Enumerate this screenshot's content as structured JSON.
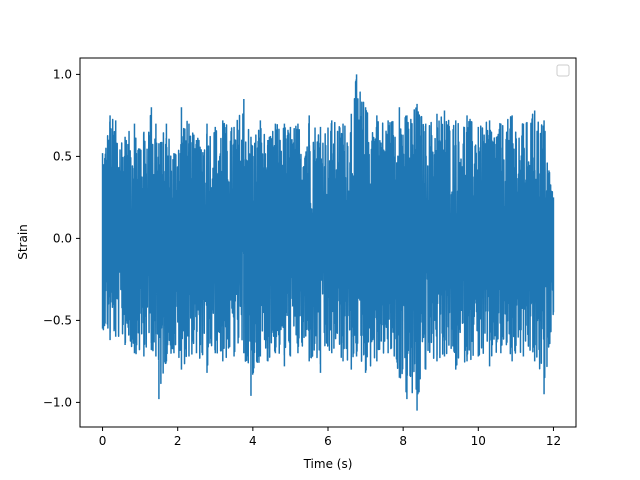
{
  "chart_data": {
    "type": "line",
    "title": "",
    "xlabel": "Time (s)",
    "ylabel": "Strain",
    "xlim": [
      -0.6,
      12.6
    ],
    "ylim": [
      -1.15,
      1.1
    ],
    "x_ticks": [
      0,
      2,
      4,
      6,
      8,
      10,
      12
    ],
    "x_tick_labels": [
      "0",
      "2",
      "4",
      "6",
      "8",
      "10",
      "12"
    ],
    "y_ticks": [
      -1.0,
      -0.5,
      0.0,
      0.5,
      1.0
    ],
    "y_tick_labels": [
      "−1.0",
      "−0.5",
      "0.0",
      "0.5",
      "1.0"
    ],
    "grid": false,
    "legend": {
      "placement": "top-right",
      "entries": []
    },
    "line_color": "#1f77b4",
    "series": [
      {
        "x": [
          0.0,
          0.2,
          0.35,
          0.6,
          0.85,
          1.1,
          1.3,
          1.42,
          1.5,
          1.7,
          1.9,
          2.1,
          2.3,
          2.5,
          2.78,
          3.0,
          3.2,
          3.5,
          3.76,
          3.95,
          4.2,
          4.4,
          4.6,
          4.84,
          5.0,
          5.2,
          5.5,
          5.8,
          6.1,
          6.4,
          6.62,
          6.76,
          7.0,
          7.3,
          7.6,
          7.9,
          8.1,
          8.37,
          8.6,
          8.9,
          9.1,
          9.4,
          9.7,
          10.0,
          10.3,
          10.6,
          10.9,
          11.2,
          11.5,
          11.75,
          12.0
        ],
        "upper_envelope": [
          0.52,
          0.75,
          0.72,
          0.62,
          0.7,
          0.65,
          0.8,
          0.7,
          0.58,
          0.7,
          0.52,
          0.8,
          0.7,
          0.6,
          0.7,
          0.68,
          0.72,
          0.68,
          0.85,
          0.62,
          0.72,
          0.6,
          0.7,
          0.7,
          0.68,
          0.7,
          0.75,
          0.68,
          0.72,
          0.7,
          0.76,
          1.0,
          0.8,
          0.75,
          0.72,
          0.8,
          0.75,
          0.82,
          0.7,
          0.76,
          0.78,
          0.72,
          0.75,
          0.68,
          0.72,
          0.7,
          0.75,
          0.7,
          0.78,
          0.72,
          0.25
        ],
        "lower_envelope": [
          -0.55,
          -0.62,
          -0.6,
          -0.65,
          -0.7,
          -0.72,
          -0.68,
          -0.72,
          -0.98,
          -0.75,
          -0.7,
          -0.8,
          -0.72,
          -0.7,
          -0.82,
          -0.7,
          -0.75,
          -0.72,
          -0.7,
          -0.96,
          -0.72,
          -0.75,
          -0.7,
          -0.78,
          -0.72,
          -0.7,
          -0.75,
          -0.82,
          -0.7,
          -0.75,
          -0.8,
          -0.72,
          -0.82,
          -0.75,
          -0.7,
          -0.85,
          -0.98,
          -1.05,
          -0.8,
          -0.75,
          -0.72,
          -0.8,
          -0.75,
          -0.72,
          -0.78,
          -0.7,
          -0.75,
          -0.72,
          -0.75,
          -0.95,
          -0.45
        ]
      }
    ]
  }
}
